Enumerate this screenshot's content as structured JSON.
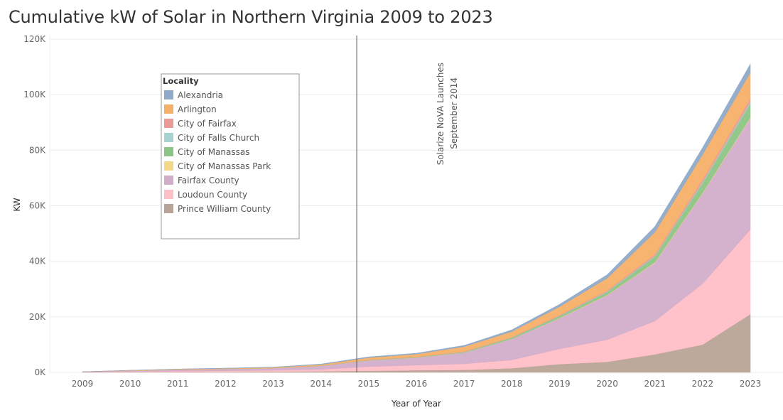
{
  "chart_data": {
    "type": "area",
    "stacked": true,
    "title": "Cumulative kW of Solar in Northern Virginia 2009 to 2023",
    "xlabel": "Year of Year",
    "ylabel": "KW",
    "ylim": [
      0,
      120000
    ],
    "yticks": [
      0,
      20000,
      40000,
      60000,
      80000,
      100000,
      120000
    ],
    "ytick_labels": [
      "0K",
      "20K",
      "40K",
      "60K",
      "80K",
      "100K",
      "120K"
    ],
    "categories": [
      "2009",
      "2010",
      "2011",
      "2012",
      "2013",
      "2014",
      "2015",
      "2016",
      "2017",
      "2018",
      "2019",
      "2020",
      "2021",
      "2022",
      "2023"
    ],
    "legend_title": "Locality",
    "legend_position": "upper-left",
    "series": [
      {
        "name": "Prince William County",
        "color": "#B9A397",
        "values": [
          0,
          100,
          150,
          200,
          300,
          400,
          600,
          800,
          900,
          1500,
          3000,
          3800,
          6500,
          10000,
          21000
        ]
      },
      {
        "name": "Loudoun County",
        "color": "#FFBFC7",
        "values": [
          50,
          150,
          300,
          400,
          500,
          700,
          1500,
          1800,
          2200,
          3000,
          5500,
          8000,
          12000,
          22000,
          30500
        ]
      },
      {
        "name": "Fairfax County",
        "color": "#D2ADC9",
        "values": [
          150,
          350,
          500,
          600,
          700,
          1200,
          2200,
          2700,
          4000,
          7500,
          11000,
          16000,
          21000,
          32500,
          40000
        ]
      },
      {
        "name": "City of Manassas Park",
        "color": "#F2D888",
        "values": [
          0,
          0,
          0,
          10,
          10,
          20,
          30,
          40,
          50,
          80,
          100,
          150,
          200,
          250,
          300
        ]
      },
      {
        "name": "City of Manassas",
        "color": "#8CC586",
        "values": [
          0,
          10,
          20,
          30,
          40,
          60,
          100,
          150,
          200,
          400,
          700,
          1000,
          2000,
          3500,
          5000
        ]
      },
      {
        "name": "City of Falls Church",
        "color": "#A6D3CF",
        "values": [
          0,
          0,
          10,
          10,
          10,
          20,
          30,
          40,
          50,
          80,
          100,
          150,
          200,
          350,
          500
        ]
      },
      {
        "name": "City of Fairfax",
        "color": "#EB9A98",
        "values": [
          0,
          10,
          10,
          20,
          20,
          40,
          60,
          80,
          100,
          150,
          250,
          350,
          600,
          900,
          1200
        ]
      },
      {
        "name": "Arlington",
        "color": "#F5B068",
        "values": [
          40,
          120,
          180,
          200,
          250,
          400,
          800,
          1000,
          1800,
          2000,
          3000,
          4500,
          8000,
          9000,
          9500
        ]
      },
      {
        "name": "Alexandria",
        "color": "#8FAAC9",
        "values": [
          10,
          20,
          40,
          60,
          80,
          150,
          250,
          300,
          400,
          600,
          800,
          1200,
          2000,
          2400,
          3000
        ]
      }
    ],
    "legend_order": [
      "Alexandria",
      "Arlington",
      "City of Fairfax",
      "City of Falls Church",
      "City of Manassas",
      "City of Manassas Park",
      "Fairfax County",
      "Loudoun County",
      "Prince William County"
    ],
    "annotation": {
      "x": 2014.75,
      "line1": "Solarize NoVA Launches",
      "line2": "September 2014"
    }
  }
}
